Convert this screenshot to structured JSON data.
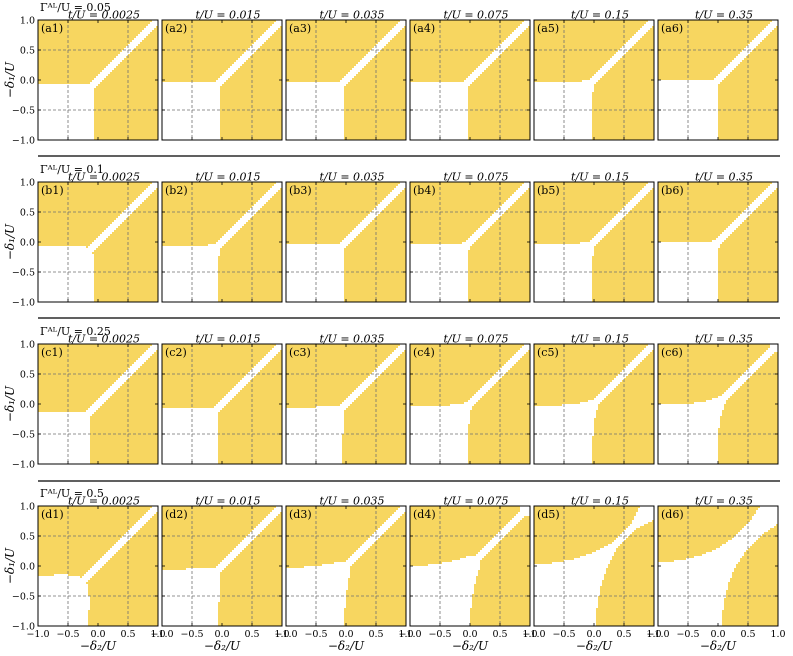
{
  "figure": {
    "fill_color": "#F7D660",
    "grid_color": "#707070",
    "frame_color": "#000000"
  },
  "chart_data": {
    "type": "heatmap",
    "x_axis": {
      "label": "−δ₂/U",
      "range": [
        -1.0,
        1.0
      ],
      "ticks": [
        -1.0,
        -0.5,
        0.0,
        0.5,
        1.0
      ],
      "tick_labels": [
        "−1.0",
        "−0.5",
        "0.0",
        "0.5",
        "1.0"
      ]
    },
    "y_axis": {
      "label": "−δ₁/U",
      "range": [
        -1.0,
        1.0
      ],
      "ticks": [
        1.0,
        0.5,
        0.0,
        -0.5,
        -1.0
      ],
      "tick_labels": [
        "1.0",
        "0.5",
        "0.0",
        "−0.5",
        "−1.0"
      ]
    },
    "gridlines": [
      -0.5,
      0.5
    ],
    "column_titles": [
      "t/U = 0.0025",
      "t/U = 0.015",
      "t/U = 0.035",
      "t/U = 0.075",
      "t/U = 0.15",
      "t/U = 0.35"
    ],
    "t_values": [
      0.0025,
      0.015,
      0.035,
      0.075,
      0.15,
      0.35
    ],
    "rows": [
      {
        "label": "Γᴬᴸ/U = 0.05",
        "gamma": 0.05,
        "panel_labels": [
          "(a1)",
          "(a2)",
          "(a3)",
          "(a4)",
          "(a5)",
          "(a6)"
        ]
      },
      {
        "label": "Γᴬᴸ/U = 0.1",
        "gamma": 0.1,
        "panel_labels": [
          "(b1)",
          "(b2)",
          "(b3)",
          "(b4)",
          "(b5)",
          "(b6)"
        ]
      },
      {
        "label": "Γᴬᴸ/U = 0.25",
        "gamma": 0.25,
        "panel_labels": [
          "(c1)",
          "(c2)",
          "(c3)",
          "(c4)",
          "(c5)",
          "(c6)"
        ]
      },
      {
        "label": "Γᴬᴸ/U = 0.5",
        "gamma": 0.5,
        "panel_labels": [
          "(d1)",
          "(d2)",
          "(d3)",
          "(d4)",
          "(d5)",
          "(d6)"
        ]
      }
    ]
  }
}
